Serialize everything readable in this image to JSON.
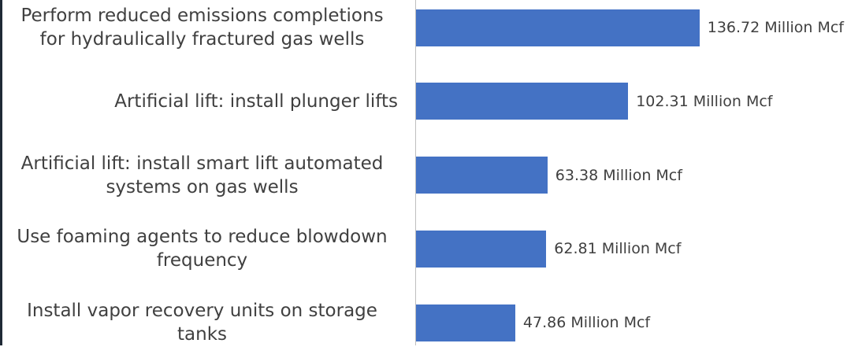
{
  "chart_data": {
    "type": "bar",
    "orientation": "horizontal",
    "categories": [
      "Perform reduced emissions completions for hydraulically fractured gas wells",
      "Artificial lift: install plunger lifts",
      "Artificial lift: install smart lift automated systems on gas wells",
      "Use foaming agents to reduce blowdown frequency",
      "Install vapor recovery units on storage tanks"
    ],
    "values": [
      136.72,
      102.31,
      63.38,
      62.81,
      47.86
    ],
    "value_labels": [
      "136.72 Million Mcf",
      "102.31 Million Mcf",
      "63.38 Million Mcf",
      "62.81 Million Mcf",
      "47.86 Million Mcf"
    ],
    "color": "#4472c4",
    "xlim": [
      0,
      160
    ]
  }
}
